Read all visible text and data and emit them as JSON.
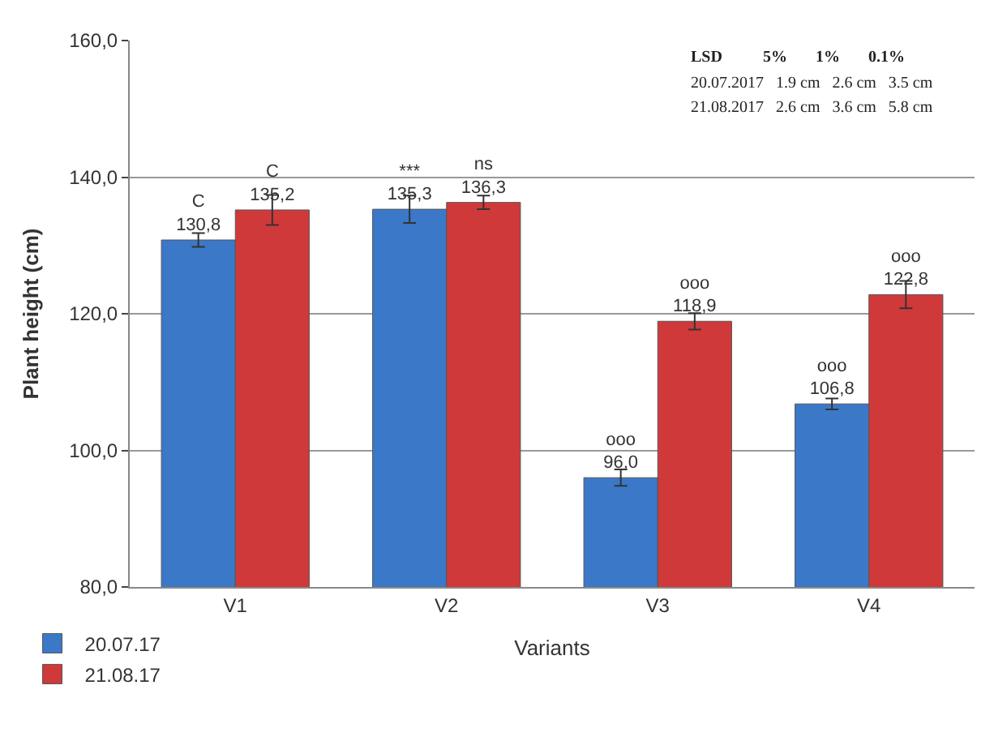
{
  "chart_data": {
    "type": "bar",
    "xlabel": "Variants",
    "ylabel": "Plant height (cm)",
    "categories": [
      "V1",
      "V2",
      "V3",
      "V4"
    ],
    "series": [
      {
        "name": "20.07.17",
        "color": "#3b78c8",
        "values": [
          130.8,
          135.3,
          96.0,
          106.8
        ],
        "errors": [
          1.0,
          2.0,
          1.2,
          0.8
        ],
        "value_labels": [
          "C\n130,8",
          "***\n135,3",
          "ooo\n96,0",
          "ooo\n106,8"
        ]
      },
      {
        "name": "21.08.17",
        "color": "#d0393a",
        "values": [
          135.2,
          136.3,
          118.9,
          122.8
        ],
        "errors": [
          2.2,
          1.0,
          1.2,
          2.0
        ],
        "value_labels": [
          "C\n135,2",
          "ns\n136,3",
          "ooo\n118,9",
          "ooo\n122,8"
        ]
      }
    ],
    "ylim": [
      80,
      160
    ],
    "yticks": [
      {
        "value": 80,
        "label": "80,0"
      },
      {
        "value": 100,
        "label": "100,0"
      },
      {
        "value": 120,
        "label": "120,0"
      },
      {
        "value": 140,
        "label": "140,0"
      },
      {
        "value": 160,
        "label": "160,0"
      }
    ],
    "grid": "y",
    "legend": "bottom left",
    "annotations": [
      "LSD          5%       1%       0.1%",
      "20.07.2017   1.9 cm   2.6 cm   3.5 cm",
      "21.08.2017   2.6 cm   3.6 cm   5.8 cm"
    ]
  }
}
